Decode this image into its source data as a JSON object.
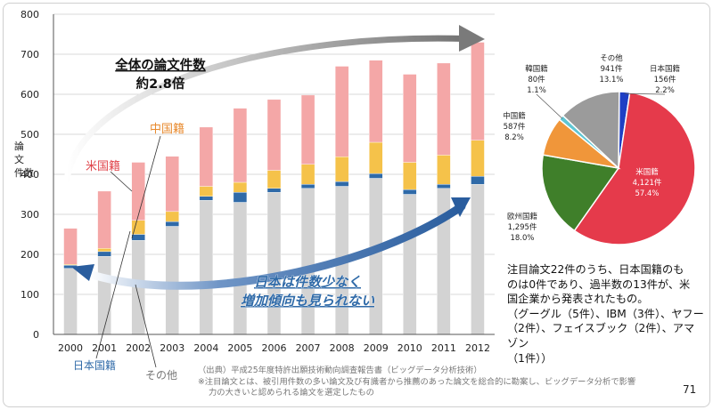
{
  "chart_data": [
    {
      "type": "bar",
      "stacked": true,
      "ylabel": "論文件数",
      "ylim": [
        0,
        800
      ],
      "yticks": [
        0,
        100,
        200,
        300,
        400,
        500,
        600,
        700,
        800
      ],
      "grid": true,
      "categories": [
        "2000",
        "2001",
        "2002",
        "2003",
        "2004",
        "2005",
        "2006",
        "2007",
        "2008",
        "2009",
        "2010",
        "2011",
        "2012"
      ],
      "series": [
        {
          "name": "その他",
          "color": "#d3d3d3",
          "values": [
            165,
            195,
            235,
            270,
            335,
            330,
            355,
            365,
            370,
            390,
            350,
            365,
            375
          ]
        },
        {
          "name": "日本国籍",
          "color": "#2f6aa8",
          "values": [
            8,
            12,
            15,
            12,
            10,
            25,
            10,
            10,
            12,
            12,
            12,
            10,
            20
          ]
        },
        {
          "name": "中国籍",
          "color": "#f5c24a",
          "values": [
            2,
            8,
            35,
            25,
            25,
            25,
            45,
            50,
            62,
            78,
            68,
            73,
            90
          ]
        },
        {
          "name": "米国籍",
          "color": "#f4a7a7",
          "values": [
            90,
            143,
            145,
            138,
            148,
            185,
            177,
            173,
            226,
            205,
            220,
            230,
            245
          ]
        }
      ],
      "annotations": {
        "total_title": "全体の論文件数",
        "total_ratio": "約2.8倍",
        "china": "中国籍",
        "usa": "米国籍",
        "japan": "日本国籍",
        "other": "その他",
        "japan_note_1": "日本は件数少なく",
        "japan_note_2": "増加傾向も見られない"
      }
    },
    {
      "type": "pie",
      "slices": [
        {
          "name": "日本国籍",
          "count": "156件",
          "percent": 2.2,
          "color": "#1f3fc4"
        },
        {
          "name": "米国籍",
          "count": "4,121件",
          "percent": 57.4,
          "color": "#e53a4b"
        },
        {
          "name": "欧州国籍",
          "count": "1,295件",
          "percent": 18.0,
          "color": "#3f7f2a"
        },
        {
          "name": "中国籍",
          "count": "587件",
          "percent": 8.2,
          "color": "#f0963a"
        },
        {
          "name": "韓国籍",
          "count": "80件",
          "percent": 1.1,
          "color": "#5fc6d3"
        },
        {
          "name": "その他",
          "count": "941件",
          "percent": 13.1,
          "color": "#9b9b9b"
        }
      ]
    }
  ],
  "note": {
    "line1": "注目論文22件のうち、日本国籍のも",
    "line2": "のは0件であり、過半数の13件が、米",
    "line3": "国企業から発表されたもの。",
    "line4": "（グーグル（5件）、IBM（3件）、ヤフー",
    "line5": "（2件）、フェイスブック（2件）、アマゾン",
    "line6": "（1件））"
  },
  "source": {
    "line1": "（出典）平成25年度特許出願技術動向調査報告書（ビッグデータ分析技術）",
    "line2": "※注目論文とは、被引用件数の多い論文及び有識者から推薦のあった論文を総合的に勘案し、ビッグデータ分析で影響",
    "line3": "力の大きいと認められる論文を選定したもの"
  },
  "page_number": "71"
}
